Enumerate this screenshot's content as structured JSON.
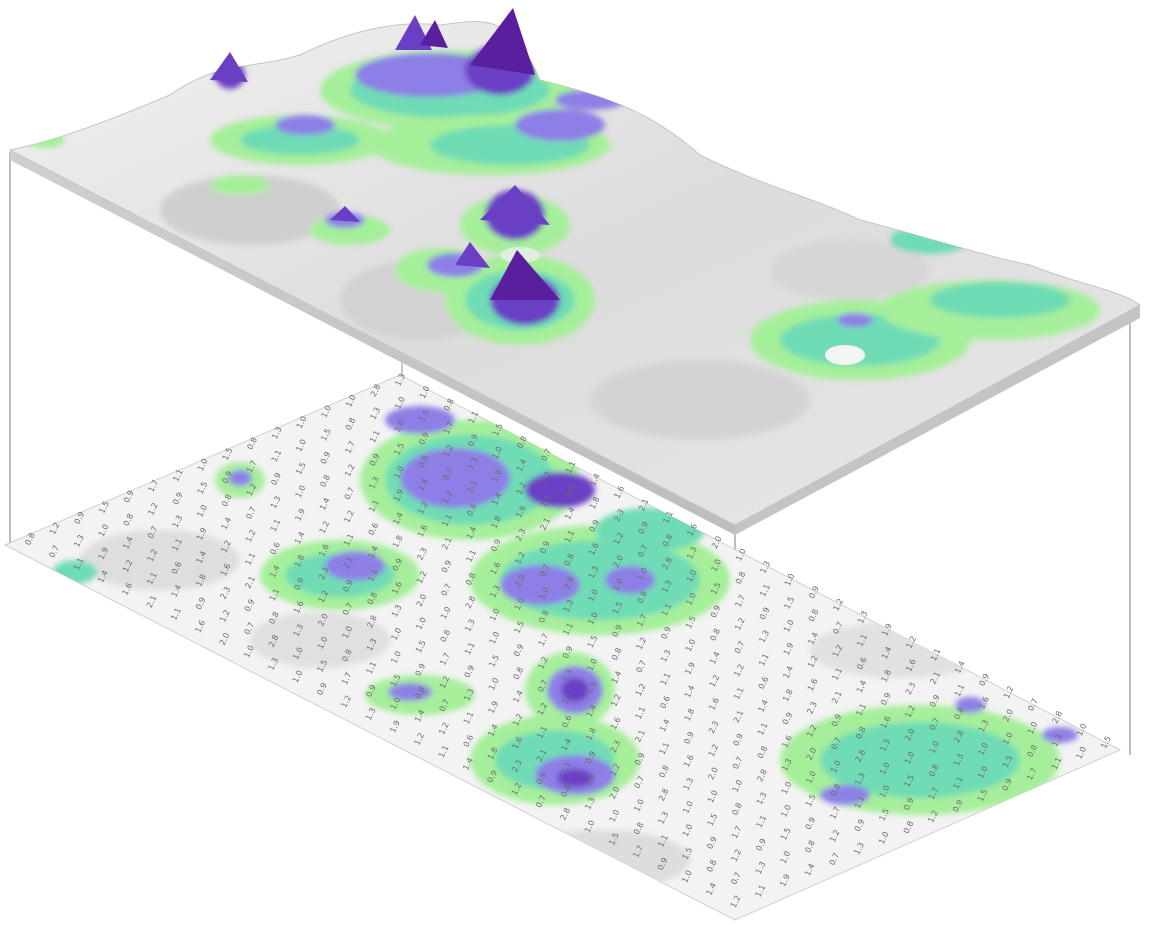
{
  "figure": {
    "kind": "3d-surface-over-contour-map",
    "colors": {
      "background": "#ffffff",
      "base_gray": "#e2e2e2",
      "edge_gray": "#c7c7c7",
      "frame": "#b9b9b9",
      "level_1": "#d9f7b3",
      "level_2": "#a6ef9a",
      "level_3": "#6fdcb5",
      "level_4": "#4fc4a8",
      "level_5": "#8d7fe6",
      "level_6": "#6a3fc4",
      "level_7": "#5a1f9e"
    }
  },
  "post_values": [
    "0.8",
    "1.0",
    "1.1",
    "1.2",
    "0.9",
    "1.3",
    "1.4",
    "0.7",
    "1.5",
    "1.6",
    "0.6",
    "1.2",
    "1.0",
    "0.9",
    "1.1",
    "1.7",
    "2.0",
    "1.8",
    "1.3",
    "0.8",
    "1.2",
    "1.4",
    "0.9",
    "1.0",
    "2.3",
    "1.9",
    "1.1",
    "0.7",
    "1.6",
    "1.0",
    "1.3",
    "0.9",
    "1.2",
    "1.5",
    "2.8",
    "2.1",
    "1.4",
    "1.0",
    "0.8",
    "1.1"
  ]
}
